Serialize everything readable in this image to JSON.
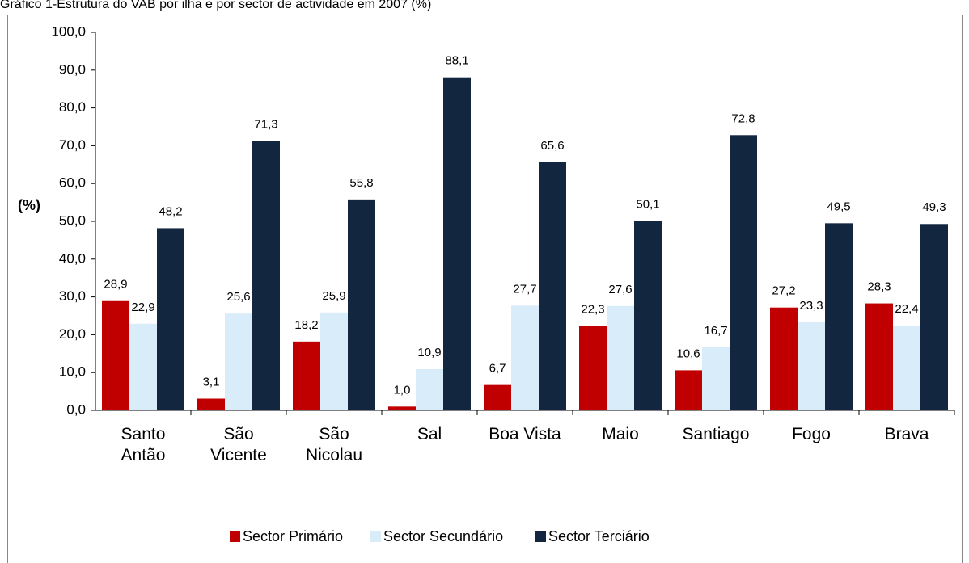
{
  "chart_data": {
    "type": "bar",
    "title": "Gráfico 1-Estrutura do VAB por ilha e por sector de actividade em 2007 (%)",
    "y_label": "(%)",
    "categories": [
      "Santo Antão",
      "São Vicente",
      "São Nicolau",
      "Sal",
      "Boa Vista",
      "Maio",
      "Santiago",
      "Fogo",
      "Brava"
    ],
    "series": [
      {
        "name": "Sector Primário",
        "color": "#c00000",
        "values": [
          28.9,
          3.1,
          18.2,
          1.0,
          6.7,
          22.3,
          10.6,
          27.2,
          28.3
        ],
        "value_labels": [
          "28,9",
          "3,1",
          "18,2",
          "1,0",
          "6,7",
          "22,3",
          "10,6",
          "27,2",
          "28,3"
        ]
      },
      {
        "name": "Sector Secundário",
        "color": "#d9ecf9",
        "values": [
          22.9,
          25.6,
          25.9,
          10.9,
          27.7,
          27.6,
          16.7,
          23.3,
          22.4
        ],
        "value_labels": [
          "22,9",
          "25,6",
          "25,9",
          "10,9",
          "27,7",
          "27,6",
          "16,7",
          "23,3",
          "22,4"
        ]
      },
      {
        "name": "Sector Terciário",
        "color": "#12263f",
        "values": [
          48.2,
          71.3,
          55.8,
          88.1,
          65.6,
          50.1,
          72.8,
          49.5,
          49.3
        ],
        "value_labels": [
          "48,2",
          "71,3",
          "55,8",
          "88,1",
          "65,6",
          "50,1",
          "72,8",
          "49,5",
          "49,3"
        ]
      }
    ],
    "ylim": [
      0,
      100
    ],
    "yticks": [
      {
        "value": 0,
        "label": "0,0"
      },
      {
        "value": 10,
        "label": "10,0"
      },
      {
        "value": 20,
        "label": "20,0"
      },
      {
        "value": 30,
        "label": "30,0"
      },
      {
        "value": 40,
        "label": "40,0"
      },
      {
        "value": 50,
        "label": "50,0"
      },
      {
        "value": 60,
        "label": "60,0"
      },
      {
        "value": 70,
        "label": "70,0"
      },
      {
        "value": 80,
        "label": "80,0"
      },
      {
        "value": 90,
        "label": "90,0"
      },
      {
        "value": 100,
        "label": "100,0"
      }
    ],
    "legend": "bottom"
  }
}
